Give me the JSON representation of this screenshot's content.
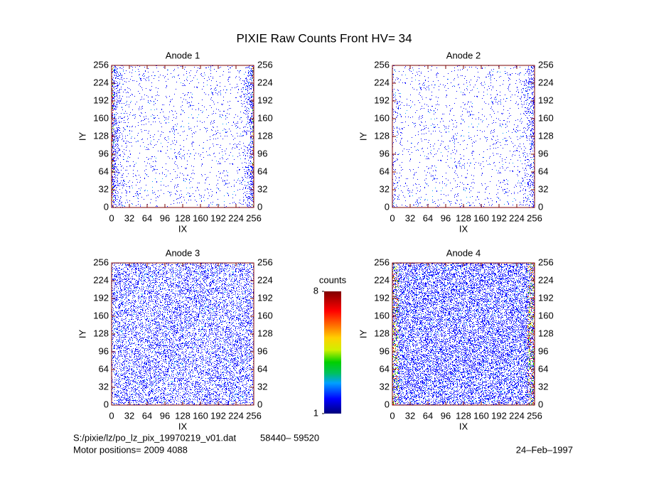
{
  "title": "PIXIE Raw Counts Front HV= 34",
  "footer": {
    "file": "S:/pixie/lz/po_lz_pix_19970219_v01.dat",
    "range": "58440– 59520",
    "motor": "Motor positions= 2009 4088",
    "date": "24–Feb–1997"
  },
  "chart_data": [
    {
      "type": "heatmap",
      "title": "Anode 1",
      "xlabel": "IX",
      "ylabel": "IY",
      "xlim": [
        0,
        256
      ],
      "ylim": [
        0,
        256
      ],
      "xticks": [
        0,
        32,
        64,
        96,
        128,
        160,
        192,
        224,
        256
      ],
      "yticks": [
        0,
        32,
        64,
        96,
        128,
        160,
        192,
        224,
        256
      ]
    },
    {
      "type": "heatmap",
      "title": "Anode 2",
      "xlabel": "IX",
      "ylabel": "IY",
      "xlim": [
        0,
        256
      ],
      "ylim": [
        0,
        256
      ],
      "xticks": [
        0,
        32,
        64,
        96,
        128,
        160,
        192,
        224,
        256
      ],
      "yticks": [
        0,
        32,
        64,
        96,
        128,
        160,
        192,
        224,
        256
      ]
    },
    {
      "type": "heatmap",
      "title": "Anode 3",
      "xlabel": "IX",
      "ylabel": "IY",
      "xlim": [
        0,
        256
      ],
      "ylim": [
        0,
        256
      ],
      "xticks": [
        0,
        32,
        64,
        96,
        128,
        160,
        192,
        224,
        256
      ],
      "yticks": [
        0,
        32,
        64,
        96,
        128,
        160,
        192,
        224,
        256
      ]
    },
    {
      "type": "heatmap",
      "title": "Anode 4",
      "xlabel": "IX",
      "ylabel": "IY",
      "xlim": [
        0,
        256
      ],
      "ylim": [
        0,
        256
      ],
      "xticks": [
        0,
        32,
        64,
        96,
        128,
        160,
        192,
        224,
        256
      ],
      "yticks": [
        0,
        32,
        64,
        96,
        128,
        160,
        192,
        224,
        256
      ]
    },
    {
      "type": "colorbar",
      "label": "counts",
      "ylim": [
        1,
        8
      ],
      "yticks": [
        1,
        8
      ]
    }
  ]
}
